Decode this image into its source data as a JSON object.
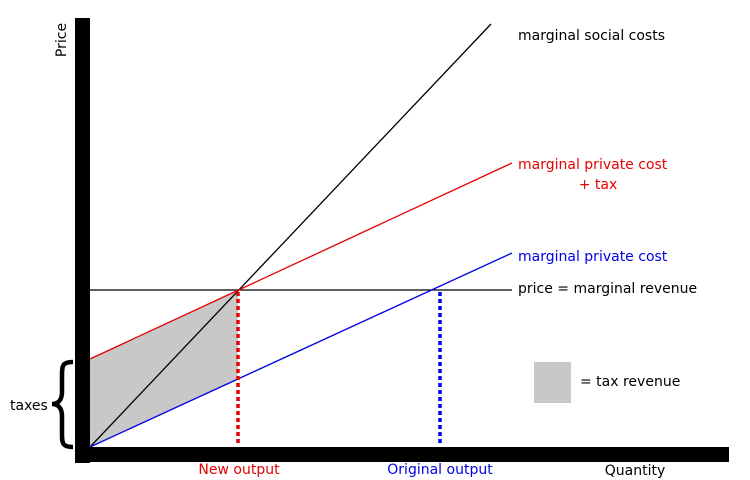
{
  "axes": {
    "y_label": "Price",
    "x_label": "Quantity"
  },
  "lines": {
    "marginal_social_costs": "marginal social costs",
    "marginal_private_cost_plus_tax_line1": "marginal private cost",
    "marginal_private_cost_plus_tax_line2": "+ tax",
    "marginal_private_cost": "marginal private cost",
    "price_marginal_revenue": "price = marginal revenue"
  },
  "outputs": {
    "new_output": "New output",
    "original_output": "Original output"
  },
  "taxes_label": "taxes",
  "legend": {
    "tax_revenue": "= tax revenue"
  },
  "colors": {
    "social": "#000000",
    "private_plus_tax": "#e60000",
    "private": "#0000e6",
    "price": "#000000",
    "tax_area": "#c8c8c8",
    "new_output": "#e60000",
    "original_output": "#0000e6"
  }
}
